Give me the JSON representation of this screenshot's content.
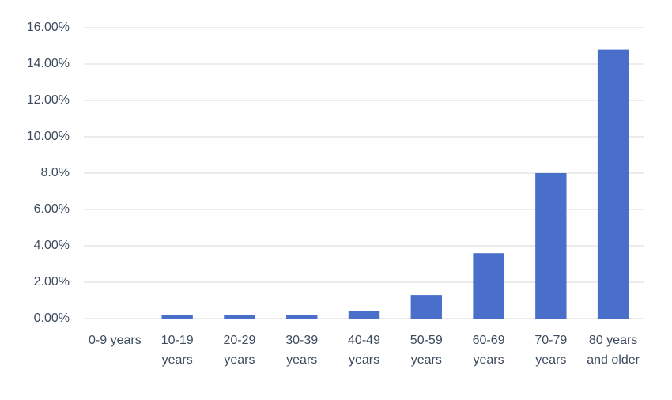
{
  "chart_data": {
    "type": "bar",
    "categories": [
      "0-9 years",
      "10-19 years",
      "20-29 years",
      "30-39 years",
      "40-49 years",
      "50-59 years",
      "60-69 years",
      "70-79 years",
      "80 years and older"
    ],
    "values": [
      0,
      0.2,
      0.2,
      0.2,
      0.4,
      1.3,
      3.6,
      8.0,
      14.8
    ],
    "color": "#4a6fcb",
    "ylim": [
      0,
      16
    ],
    "yticks": [
      {
        "value": 0,
        "label": "0.00%"
      },
      {
        "value": 2,
        "label": "2.00%"
      },
      {
        "value": 4,
        "label": "4.00%"
      },
      {
        "value": 6,
        "label": "6.00%"
      },
      {
        "value": 8,
        "label": "8.0%"
      },
      {
        "value": 10,
        "label": "10.00%"
      },
      {
        "value": 12,
        "label": "12.00%"
      },
      {
        "value": 14,
        "label": "14.00%"
      },
      {
        "value": 16,
        "label": "16.00%"
      }
    ],
    "grid": true
  }
}
